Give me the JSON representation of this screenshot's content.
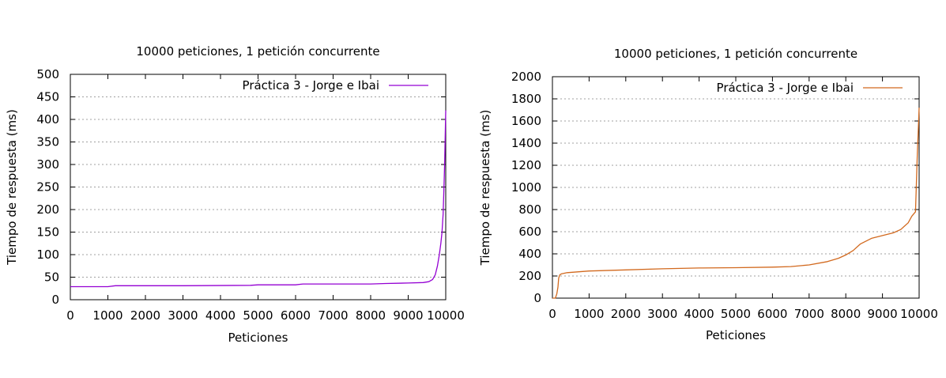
{
  "chart_data": [
    {
      "type": "line",
      "title": "10000 peticiones, 1 petición concurrente",
      "xlabel": "Peticiones",
      "ylabel": "Tiempo de respuesta (ms)",
      "xlim": [
        0,
        10000
      ],
      "ylim": [
        0,
        500
      ],
      "xticks": [
        "0",
        "1000",
        "2000",
        "3000",
        "4000",
        "5000",
        "6000",
        "7000",
        "8000",
        "9000",
        "10000"
      ],
      "yticks": [
        "0",
        "50",
        "100",
        "150",
        "200",
        "250",
        "300",
        "350",
        "400",
        "450",
        "500"
      ],
      "grid": "horizontal-dotted",
      "legend_position": "top-right",
      "series": [
        {
          "name": "Práctica 3 - Jorge e Ibai",
          "color": "#9400d3",
          "x": [
            0,
            1000,
            1200,
            3000,
            4800,
            5000,
            6000,
            6200,
            8000,
            8400,
            9000,
            9400,
            9550,
            9650,
            9720,
            9780,
            9830,
            9870,
            9900,
            9930,
            9950,
            9970,
            9985,
            10000
          ],
          "y": [
            29,
            29,
            31,
            31,
            32,
            33,
            33,
            35,
            35,
            36,
            37,
            38,
            40,
            45,
            55,
            75,
            100,
            125,
            150,
            190,
            240,
            300,
            360,
            420
          ]
        }
      ]
    },
    {
      "type": "line",
      "title": "10000 peticiones, 1 petición concurrente",
      "xlabel": "Peticiones",
      "ylabel": "Tiempo de respuesta (ms)",
      "xlim": [
        0,
        10000
      ],
      "ylim": [
        0,
        2000
      ],
      "xticks": [
        "0",
        "1000",
        "2000",
        "3000",
        "4000",
        "5000",
        "6000",
        "7000",
        "8000",
        "9000",
        "10000"
      ],
      "yticks": [
        "0",
        "200",
        "400",
        "600",
        "800",
        "1000",
        "1200",
        "1400",
        "1600",
        "1800",
        "2000"
      ],
      "grid": "horizontal-dotted",
      "legend_position": "top-right",
      "series": [
        {
          "name": "Práctica 3 - Jorge e Ibai",
          "color": "#d2691e",
          "x": [
            0,
            80,
            120,
            150,
            170,
            200,
            250,
            400,
            1000,
            2000,
            3000,
            4000,
            5000,
            6000,
            6500,
            7000,
            7500,
            7800,
            8000,
            8200,
            8400,
            8700,
            9000,
            9300,
            9500,
            9700,
            9800,
            9900,
            9950,
            9980,
            10000
          ],
          "y": [
            0,
            0,
            40,
            100,
            180,
            210,
            220,
            230,
            245,
            255,
            265,
            272,
            275,
            280,
            285,
            300,
            330,
            360,
            390,
            430,
            490,
            540,
            565,
            590,
            620,
            680,
            740,
            780,
            1300,
            1550,
            1720
          ]
        }
      ]
    }
  ]
}
